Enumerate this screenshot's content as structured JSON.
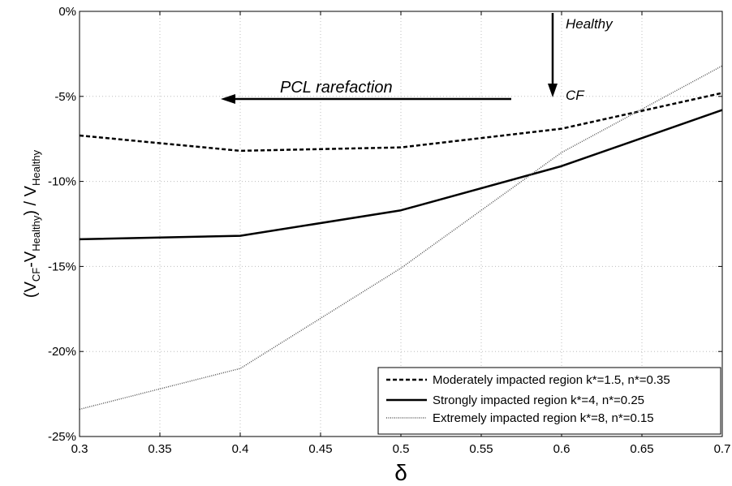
{
  "chart_data": {
    "type": "line",
    "x": [
      0.3,
      0.4,
      0.5,
      0.6,
      0.7
    ],
    "xlim": [
      0.3,
      0.7
    ],
    "ylim": [
      -25,
      0
    ],
    "x_ticks": [
      "0.3",
      "0.35",
      "0.4",
      "0.45",
      "0.5",
      "0.55",
      "0.6",
      "0.65",
      "0.7"
    ],
    "x_tick_values": [
      0.3,
      0.35,
      0.4,
      0.45,
      0.5,
      0.55,
      0.6,
      0.65,
      0.7
    ],
    "y_ticks": [
      "0%",
      "-5%",
      "-10%",
      "-15%",
      "-20%",
      "-25%"
    ],
    "y_tick_values": [
      0,
      -5,
      -10,
      -15,
      -20,
      -25
    ],
    "grid": true,
    "legend_position": "bottom-right",
    "xlabel": "δ",
    "ylabel": {
      "open": "(V",
      "sub1": "CF",
      "mid": "-V",
      "sub2": "Healthy",
      "close": ") / V",
      "sub3": "Healthy"
    },
    "series": [
      {
        "name": "Moderately impacted region k*=1.5, n*=0.35",
        "style": "dashed",
        "values": [
          -7.3,
          -8.2,
          -8.0,
          -6.9,
          -4.8
        ]
      },
      {
        "name": "Strongly impacted region k*=4, n*=0.25",
        "style": "solid",
        "values": [
          -13.4,
          -13.2,
          -11.7,
          -9.1,
          -5.8
        ]
      },
      {
        "name": "Extremely impacted region k*=8, n*=0.15",
        "style": "dotted",
        "values": [
          -23.4,
          -21.0,
          -15.1,
          -8.3,
          -3.2
        ]
      }
    ],
    "annotations": {
      "healthy": "Healthy",
      "cf": "CF",
      "pcl": "PCL rarefaction"
    }
  }
}
